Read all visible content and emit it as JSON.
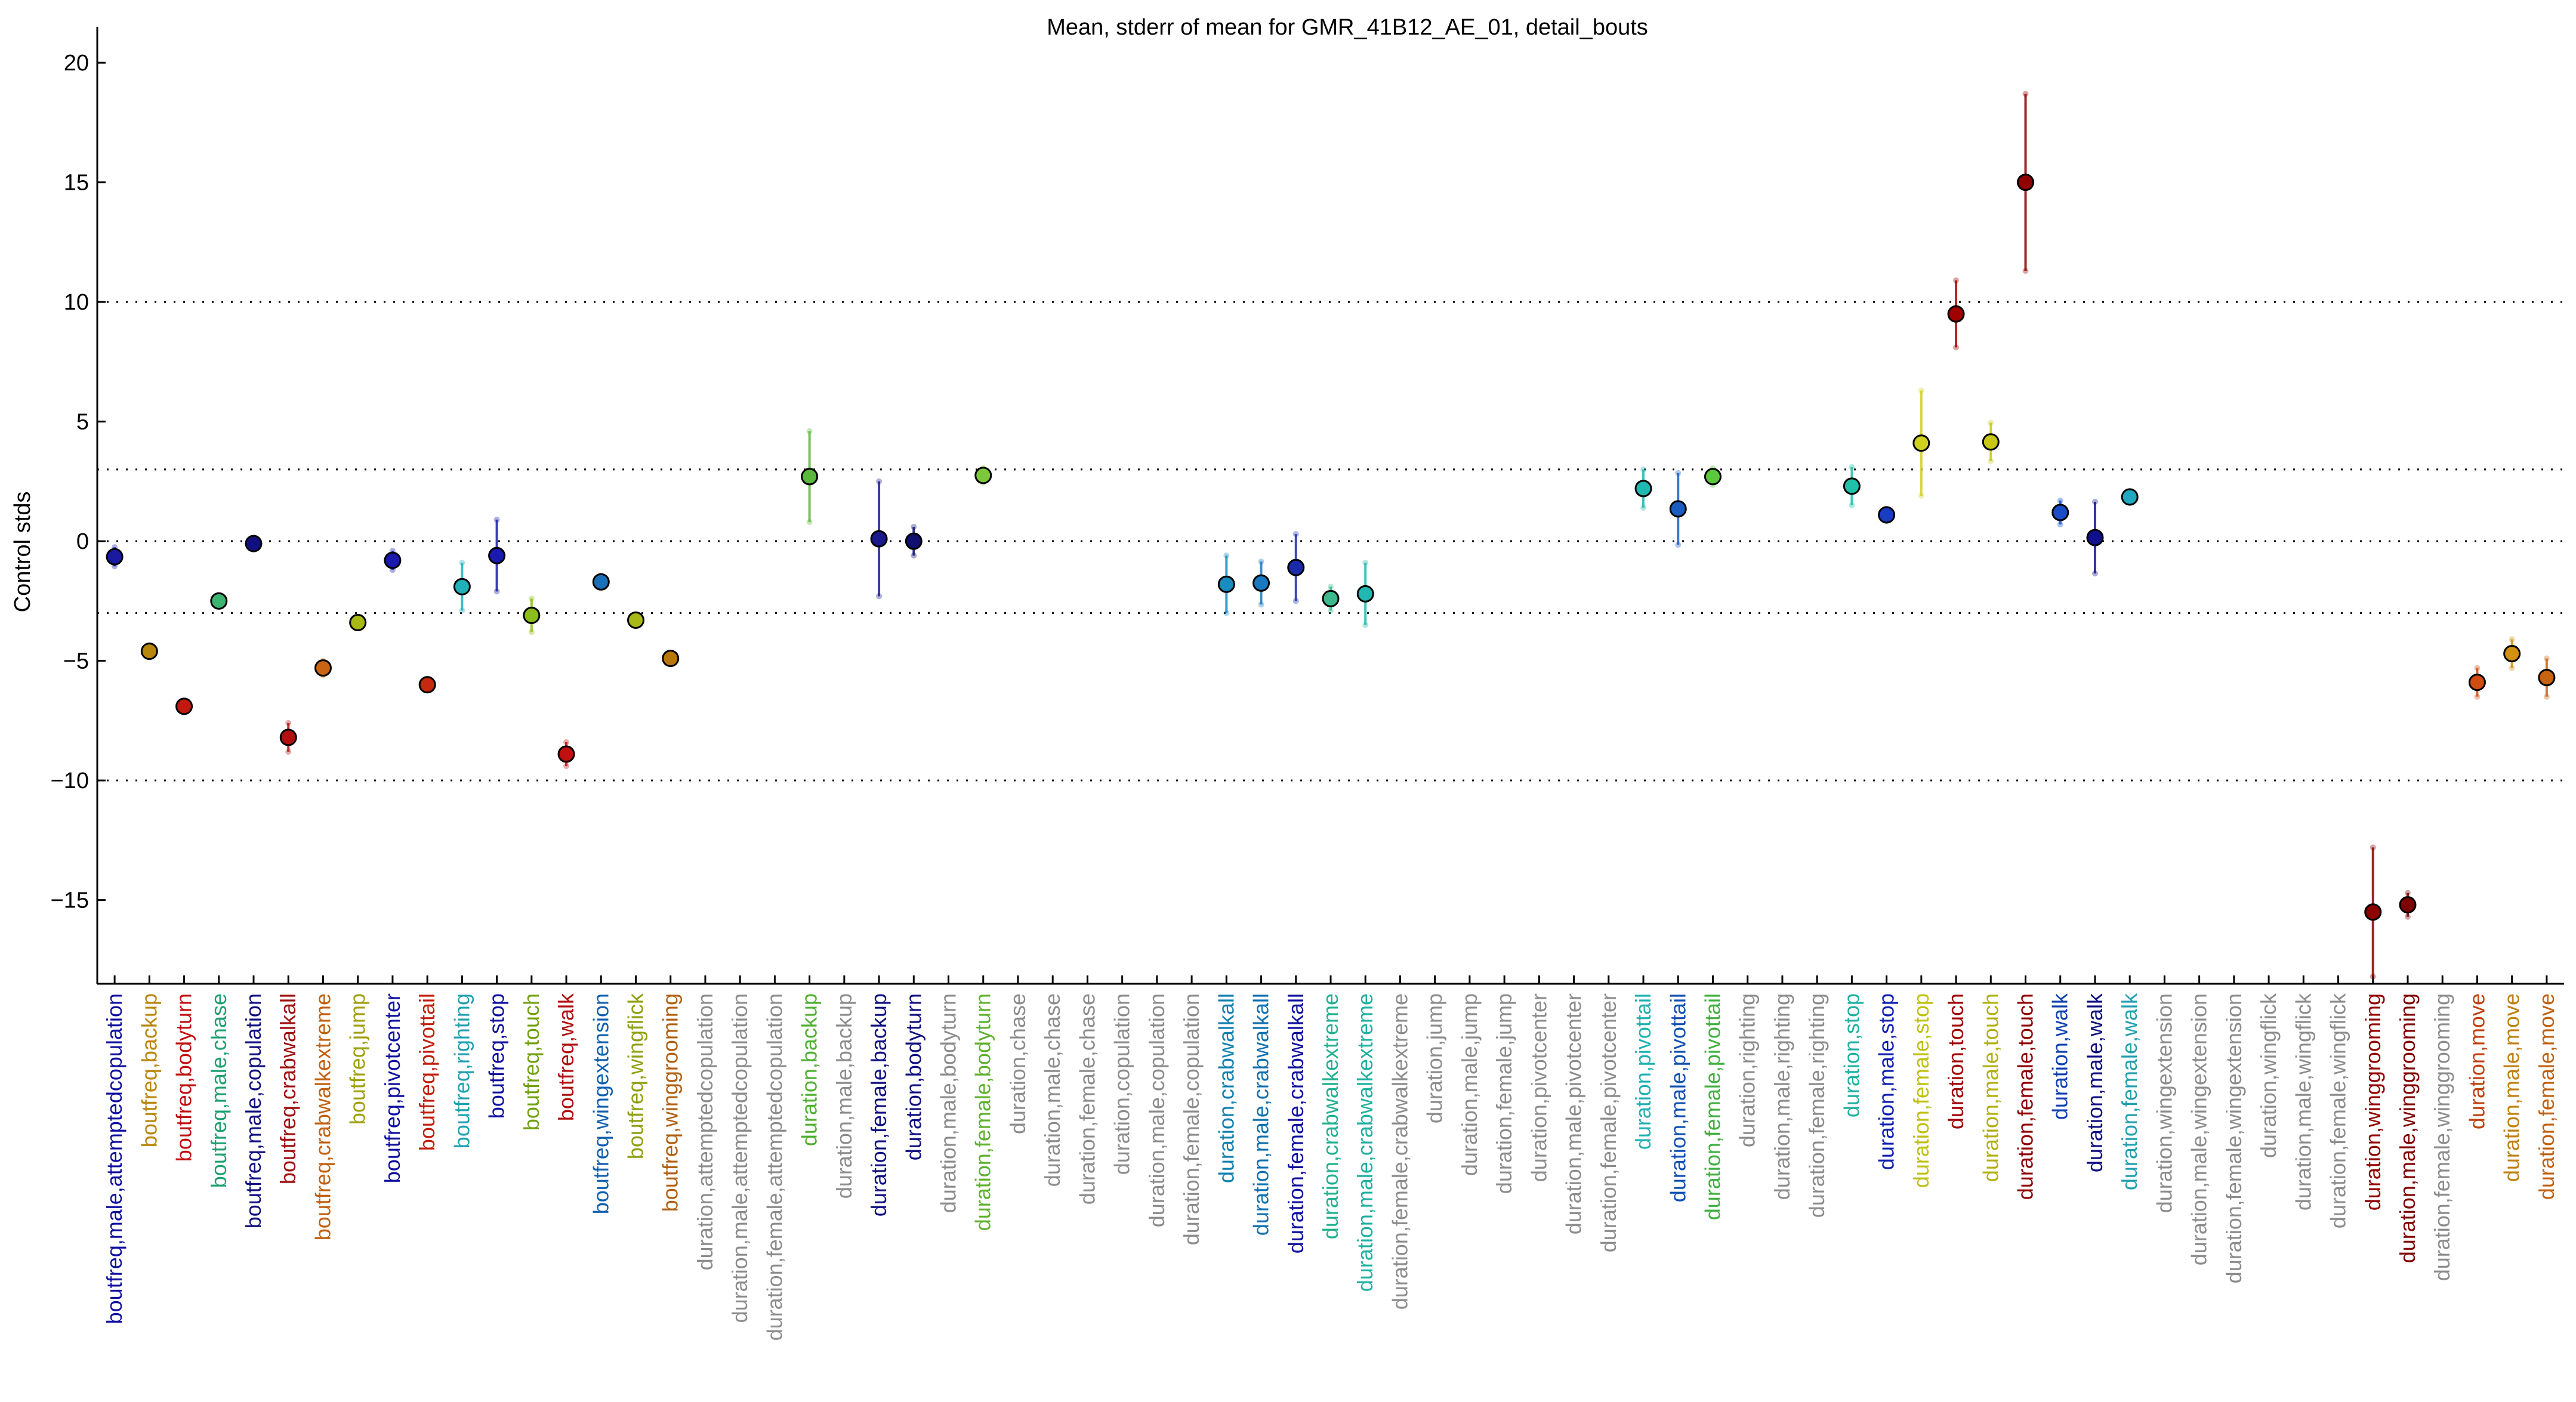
{
  "chart_data": {
    "type": "scatter",
    "title": "Mean, stderr of mean for GMR_41B12_AE_01, detail_bouts",
    "xlabel": "",
    "ylabel": "Control stds",
    "ylim": [
      -18.5,
      21.5
    ],
    "yticks": [
      -15,
      -10,
      -5,
      0,
      5,
      10,
      15,
      20
    ],
    "reference_lines": [
      -10,
      -3,
      0,
      3,
      10
    ],
    "grid": false,
    "error_bars": "mean ± stderr of mean",
    "categories": [
      "boutfreq,male,attemptedcopulation",
      "boutfreq,backup",
      "boutfreq,bodyturn",
      "boutfreq,male,chase",
      "boutfreq,male,copulation",
      "boutfreq,crabwalkall",
      "boutfreq,crabwalkextreme",
      "boutfreq,jump",
      "boutfreq,pivotcenter",
      "boutfreq,pivottail",
      "boutfreq,righting",
      "boutfreq,stop",
      "boutfreq,touch",
      "boutfreq,walk",
      "boutfreq,wingextension",
      "boutfreq,wingflick",
      "boutfreq,winggrooming",
      "duration,attemptedcopulation",
      "duration,male,attemptedcopulation",
      "duration,female,attemptedcopulation",
      "duration,backup",
      "duration,male,backup",
      "duration,female,backup",
      "duration,bodyturn",
      "duration,male,bodyturn",
      "duration,female,bodyturn",
      "duration,chase",
      "duration,male,chase",
      "duration,female,chase",
      "duration,copulation",
      "duration,male,copulation",
      "duration,female,copulation",
      "duration,crabwalkall",
      "duration,male,crabwalkall",
      "duration,female,crabwalkall",
      "duration,crabwalkextreme",
      "duration,male,crabwalkextreme",
      "duration,female,crabwalkextreme",
      "duration,jump",
      "duration,male,jump",
      "duration,female,jump",
      "duration,pivotcenter",
      "duration,male,pivotcenter",
      "duration,female,pivotcenter",
      "duration,pivottail",
      "duration,male,pivottail",
      "duration,female,pivottail",
      "duration,righting",
      "duration,male,righting",
      "duration,female,righting",
      "duration,stop",
      "duration,male,stop",
      "duration,female,stop",
      "duration,touch",
      "duration,male,touch",
      "duration,female,touch",
      "duration,walk",
      "duration,male,walk",
      "duration,female,walk",
      "duration,wingextension",
      "duration,male,wingextension",
      "duration,female,wingextension",
      "duration,wingflick",
      "duration,male,wingflick",
      "duration,female,wingflick",
      "duration,winggrooming",
      "duration,male,winggrooming",
      "duration,female,winggrooming",
      "duration,move",
      "duration,male,move",
      "duration,female,move"
    ],
    "label_colors": [
      "#1010a0",
      "#b8860b",
      "#c01010",
      "#20a070",
      "#101080",
      "#a01010",
      "#c06010",
      "#a0a010",
      "#1010a0",
      "#c02010",
      "#20a0b0",
      "#1010a0",
      "#70a010",
      "#b01010",
      "#1060b0",
      "#90a010",
      "#b06010",
      "#8c8c8c",
      "#8c8c8c",
      "#8c8c8c",
      "#50b030",
      "#8c8c8c",
      "#101080",
      "#101080",
      "#8c8c8c",
      "#60b030",
      "#8c8c8c",
      "#8c8c8c",
      "#8c8c8c",
      "#8c8c8c",
      "#8c8c8c",
      "#8c8c8c",
      "#1080b0",
      "#1070b0",
      "#1010a0",
      "#20b090",
      "#20b0a0",
      "#8c8c8c",
      "#8c8c8c",
      "#8c8c8c",
      "#8c8c8c",
      "#8c8c8c",
      "#8c8c8c",
      "#8c8c8c",
      "#20b0b0",
      "#1050b0",
      "#40b040",
      "#8c8c8c",
      "#8c8c8c",
      "#8c8c8c",
      "#20b0a0",
      "#1020b0",
      "#c0c010",
      "#a00000",
      "#b0b010",
      "#900000",
      "#1040b0",
      "#101080",
      "#20a0b0",
      "#8c8c8c",
      "#8c8c8c",
      "#8c8c8c",
      "#8c8c8c",
      "#8c8c8c",
      "#8c8c8c",
      "#900000",
      "#800000",
      "#8c8c8c",
      "#c04010",
      "#c08010",
      "#c06010"
    ],
    "series": [
      {
        "points": [
          {
            "category": "boutfreq,male,attemptedcopulation",
            "mean": -0.65,
            "stderr": 0.4,
            "color": "#1a1aa0"
          },
          {
            "category": "boutfreq,backup",
            "mean": -4.6,
            "stderr": 0.2,
            "color": "#b8860b"
          },
          {
            "category": "boutfreq,bodyturn",
            "mean": -6.9,
            "stderr": 0.2,
            "color": "#c01a10"
          },
          {
            "category": "boutfreq,male,chase",
            "mean": -2.5,
            "stderr": 0.2,
            "color": "#3cb371"
          },
          {
            "category": "boutfreq,male,copulation",
            "mean": -0.1,
            "stderr": 0.15,
            "color": "#101080"
          },
          {
            "category": "boutfreq,crabwalkall",
            "mean": -8.2,
            "stderr": 0.6,
            "color": "#b01010"
          },
          {
            "category": "boutfreq,crabwalkextreme",
            "mean": -5.3,
            "stderr": 0.3,
            "color": "#c86414"
          },
          {
            "category": "boutfreq,jump",
            "mean": -3.4,
            "stderr": 0.2,
            "color": "#a8b814"
          },
          {
            "category": "boutfreq,pivotcenter",
            "mean": -0.8,
            "stderr": 0.4,
            "color": "#1a1ab0"
          },
          {
            "category": "boutfreq,pivottail",
            "mean": -6.0,
            "stderr": 0.2,
            "color": "#c82810"
          },
          {
            "category": "boutfreq,righting",
            "mean": -1.9,
            "stderr": 1.0,
            "color": "#20b0b8"
          },
          {
            "category": "boutfreq,stop",
            "mean": -0.6,
            "stderr": 1.5,
            "color": "#1a1ab0"
          },
          {
            "category": "boutfreq,touch",
            "mean": -3.1,
            "stderr": 0.7,
            "color": "#8cbc1a"
          },
          {
            "category": "boutfreq,walk",
            "mean": -8.9,
            "stderr": 0.5,
            "color": "#c01010"
          },
          {
            "category": "boutfreq,wingextension",
            "mean": -1.7,
            "stderr": 0.2,
            "color": "#1a70b8"
          },
          {
            "category": "boutfreq,wingflick",
            "mean": -3.3,
            "stderr": 0.2,
            "color": "#a8b814"
          },
          {
            "category": "boutfreq,winggrooming",
            "mean": -4.9,
            "stderr": 0.2,
            "color": "#b8760b"
          },
          {
            "category": "duration,backup",
            "mean": 2.7,
            "stderr": 1.9,
            "color": "#5cb83c"
          },
          {
            "category": "duration,female,backup",
            "mean": 0.1,
            "stderr": 2.4,
            "color": "#1a1a8c"
          },
          {
            "category": "duration,bodyturn",
            "mean": 0.0,
            "stderr": 0.6,
            "color": "#101070"
          },
          {
            "category": "duration,female,bodyturn",
            "mean": 2.75,
            "stderr": 0.3,
            "color": "#7cc83c"
          },
          {
            "category": "duration,crabwalkall",
            "mean": -1.8,
            "stderr": 1.2,
            "color": "#1a8cc0"
          },
          {
            "category": "duration,male,crabwalkall",
            "mean": -1.75,
            "stderr": 0.9,
            "color": "#1a78c0"
          },
          {
            "category": "duration,female,crabwalkall",
            "mean": -1.1,
            "stderr": 1.4,
            "color": "#1a2aa8"
          },
          {
            "category": "duration,crabwalkextreme",
            "mean": -2.4,
            "stderr": 0.5,
            "color": "#3cb88c"
          },
          {
            "category": "duration,male,crabwalkextreme",
            "mean": -2.2,
            "stderr": 1.3,
            "color": "#20b8b0"
          },
          {
            "category": "duration,pivottail",
            "mean": 2.2,
            "stderr": 0.8,
            "color": "#20b8b0"
          },
          {
            "category": "duration,male,pivottail",
            "mean": 1.35,
            "stderr": 1.5,
            "color": "#1a5cc0"
          },
          {
            "category": "duration,female,pivottail",
            "mean": 2.7,
            "stderr": 0.35,
            "color": "#5cc83c"
          },
          {
            "category": "duration,stop",
            "mean": 2.3,
            "stderr": 0.8,
            "color": "#20c0a8"
          },
          {
            "category": "duration,male,stop",
            "mean": 1.1,
            "stderr": 0.25,
            "color": "#1a3cc0"
          },
          {
            "category": "duration,female,stop",
            "mean": 4.1,
            "stderr": 2.2,
            "color": "#d0d020"
          },
          {
            "category": "duration,touch",
            "mean": 9.5,
            "stderr": 1.4,
            "color": "#a00000"
          },
          {
            "category": "duration,male,touch",
            "mean": 4.15,
            "stderr": 0.8,
            "color": "#c8c814"
          },
          {
            "category": "duration,female,touch",
            "mean": 15.0,
            "stderr": 3.7,
            "color": "#900000"
          },
          {
            "category": "duration,walk",
            "mean": 1.2,
            "stderr": 0.5,
            "color": "#1a4cc8"
          },
          {
            "category": "duration,male,walk",
            "mean": 0.15,
            "stderr": 1.5,
            "color": "#10108c"
          },
          {
            "category": "duration,female,walk",
            "mean": 1.85,
            "stderr": 0.25,
            "color": "#20a8c0"
          },
          {
            "category": "duration,winggrooming",
            "mean": -15.5,
            "stderr": 2.7,
            "color": "#8c0000"
          },
          {
            "category": "duration,male,winggrooming",
            "mean": -15.2,
            "stderr": 0.5,
            "color": "#7c0000"
          },
          {
            "category": "duration,move",
            "mean": -5.9,
            "stderr": 0.6,
            "color": "#d04c10"
          },
          {
            "category": "duration,male,move",
            "mean": -4.7,
            "stderr": 0.6,
            "color": "#d09010"
          },
          {
            "category": "duration,female,move",
            "mean": -5.7,
            "stderr": 0.8,
            "color": "#c86410"
          }
        ]
      }
    ]
  }
}
